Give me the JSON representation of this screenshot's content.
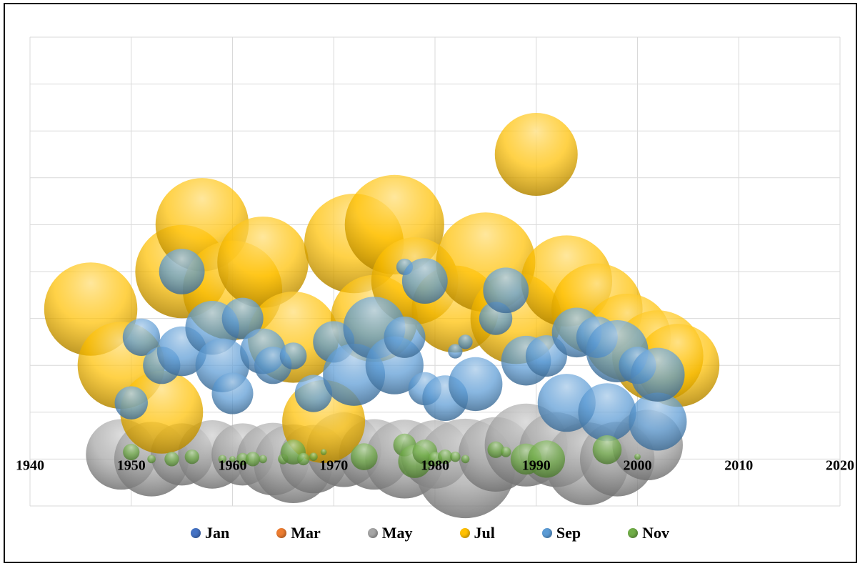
{
  "chart_data": {
    "type": "bubble",
    "title": "",
    "xlabel": "",
    "ylabel": "",
    "xlim": [
      1940,
      2020
    ],
    "ylim": [
      -1,
      9
    ],
    "x_ticks": [
      "1940",
      "1950",
      "1960",
      "1970",
      "1980",
      "1990",
      "2000",
      "2010",
      "2020"
    ],
    "grid": true,
    "legend_position": "bottom",
    "series": [
      {
        "name": "Jan",
        "color": "#4472C4",
        "points": []
      },
      {
        "name": "Mar",
        "color": "#ED7D31",
        "points": []
      },
      {
        "name": "May",
        "color": "#A5A5A5",
        "points": [
          [
            1949,
            0.1,
            34
          ],
          [
            1952,
            0.0,
            36
          ],
          [
            1955,
            0.1,
            30
          ],
          [
            1958,
            0.1,
            33
          ],
          [
            1961,
            0.1,
            30
          ],
          [
            1964,
            0.0,
            35
          ],
          [
            1966,
            -0.1,
            38
          ],
          [
            1968,
            0.0,
            33
          ],
          [
            1971,
            0.2,
            36
          ],
          [
            1974,
            0.1,
            34
          ],
          [
            1977,
            0.0,
            38
          ],
          [
            1980,
            0.1,
            33
          ],
          [
            1983,
            -0.2,
            48
          ],
          [
            1986,
            0.1,
            36
          ],
          [
            1989,
            0.3,
            40
          ],
          [
            1992,
            0.2,
            36
          ],
          [
            1995,
            -0.1,
            40
          ],
          [
            1998,
            0.0,
            36
          ],
          [
            2001,
            0.3,
            34
          ]
        ]
      },
      {
        "name": "Jul",
        "color": "#FFC000",
        "points": [
          [
            1946,
            3.2,
            45
          ],
          [
            1949,
            2.0,
            42
          ],
          [
            1953,
            1.0,
            40
          ],
          [
            1955,
            4.0,
            45
          ],
          [
            1957,
            5.0,
            45
          ],
          [
            1960,
            3.6,
            48
          ],
          [
            1963,
            4.2,
            44
          ],
          [
            1966,
            2.6,
            44
          ],
          [
            1969,
            0.8,
            40
          ],
          [
            1972,
            4.6,
            48
          ],
          [
            1974,
            3.0,
            42
          ],
          [
            1976,
            5.0,
            48
          ],
          [
            1978,
            3.8,
            42
          ],
          [
            1982,
            3.2,
            42
          ],
          [
            1985,
            4.2,
            48
          ],
          [
            1988,
            3.0,
            44
          ],
          [
            1990,
            6.5,
            40
          ],
          [
            1993,
            3.8,
            44
          ],
          [
            1996,
            3.2,
            44
          ],
          [
            1999,
            2.6,
            42
          ],
          [
            2002,
            2.2,
            44
          ],
          [
            2004,
            2.0,
            40
          ]
        ]
      },
      {
        "name": "Sep",
        "color": "#5B9BD5",
        "points": [
          [
            1950,
            1.2,
            16
          ],
          [
            1951,
            2.6,
            18
          ],
          [
            1953,
            2.0,
            18
          ],
          [
            1955,
            4.0,
            22
          ],
          [
            1955,
            2.3,
            24
          ],
          [
            1958,
            2.8,
            26
          ],
          [
            1959,
            2.0,
            26
          ],
          [
            1960,
            1.4,
            20
          ],
          [
            1961,
            3.0,
            20
          ],
          [
            1963,
            2.3,
            22
          ],
          [
            1964,
            2.0,
            18
          ],
          [
            1966,
            2.2,
            13
          ],
          [
            1968,
            1.4,
            18
          ],
          [
            1970,
            2.5,
            20
          ],
          [
            1972,
            1.8,
            30
          ],
          [
            1974,
            2.8,
            30
          ],
          [
            1976,
            2.0,
            28
          ],
          [
            1977,
            2.6,
            20
          ],
          [
            1977,
            4.1,
            8
          ],
          [
            1979,
            3.8,
            22
          ],
          [
            1979,
            1.5,
            16
          ],
          [
            1981,
            1.3,
            22
          ],
          [
            1982,
            2.3,
            7
          ],
          [
            1983,
            2.5,
            7
          ],
          [
            1984,
            1.6,
            26
          ],
          [
            1986,
            3.0,
            16
          ],
          [
            1987,
            3.6,
            22
          ],
          [
            1989,
            2.1,
            24
          ],
          [
            1991,
            2.2,
            20
          ],
          [
            1993,
            1.2,
            28
          ],
          [
            1994,
            2.7,
            24
          ],
          [
            1996,
            2.6,
            20
          ],
          [
            1997,
            1.0,
            28
          ],
          [
            1998,
            2.3,
            30
          ],
          [
            2000,
            2.0,
            18
          ],
          [
            2002,
            0.8,
            28
          ],
          [
            2002,
            1.8,
            26
          ]
        ]
      },
      {
        "name": "Nov",
        "color": "#70AD47",
        "points": [
          [
            1950,
            0.15,
            8
          ],
          [
            1952,
            0.0,
            4
          ],
          [
            1954,
            0.0,
            7
          ],
          [
            1956,
            0.05,
            7
          ],
          [
            1959,
            0.0,
            4
          ],
          [
            1960,
            0.0,
            3
          ],
          [
            1961,
            0.0,
            6
          ],
          [
            1962,
            0.0,
            7
          ],
          [
            1963,
            0.0,
            4
          ],
          [
            1965,
            0.0,
            5
          ],
          [
            1966,
            0.15,
            12
          ],
          [
            1967,
            0.0,
            6
          ],
          [
            1968,
            0.05,
            4
          ],
          [
            1969,
            0.15,
            3
          ],
          [
            1973,
            0.05,
            13
          ],
          [
            1977,
            0.3,
            11
          ],
          [
            1978,
            -0.05,
            16
          ],
          [
            1979,
            0.15,
            12
          ],
          [
            1980,
            0.0,
            7
          ],
          [
            1981,
            0.05,
            7
          ],
          [
            1982,
            0.05,
            5
          ],
          [
            1983,
            0.0,
            4
          ],
          [
            1986,
            0.2,
            8
          ],
          [
            1987,
            0.15,
            5
          ],
          [
            1989,
            0.0,
            15
          ],
          [
            1991,
            0.0,
            18
          ],
          [
            1997,
            0.2,
            14
          ],
          [
            2000,
            0.05,
            3
          ]
        ]
      }
    ]
  }
}
